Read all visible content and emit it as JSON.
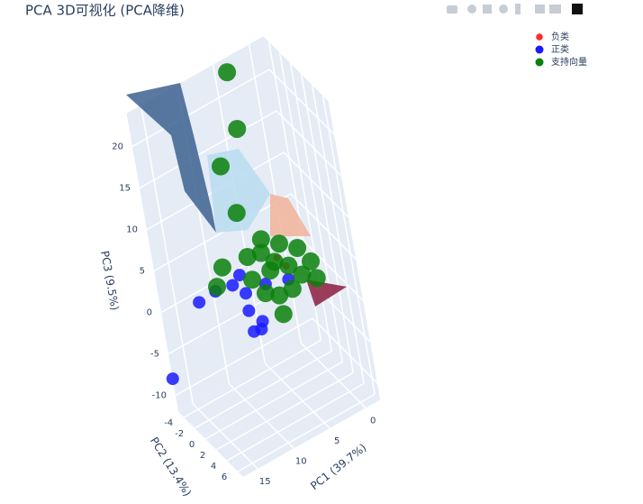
{
  "chart_data": {
    "type": "scatter3d",
    "title": "PCA 3D可视化 (PCA降维)",
    "x_label": "PC1 (39.7%)",
    "y_label": "PC2 (13.4%)",
    "z_label": "PC3 (9.5%)",
    "xlim": [
      -2,
      17
    ],
    "ylim": [
      -5,
      7
    ],
    "zlim": [
      -12,
      24
    ],
    "xticks": [
      0,
      5,
      10,
      15
    ],
    "yticks": [
      -4,
      -2,
      0,
      2,
      4,
      6
    ],
    "zticks": [
      -10,
      -5,
      0,
      5,
      10,
      15,
      20
    ],
    "grid": true,
    "legend": "top-right",
    "series": [
      {
        "name": "负类",
        "color": "#ff2a2a",
        "marker_size": 4,
        "x": [
          4.0,
          3.0
        ],
        "y": [
          0,
          0
        ],
        "z": [
          3.5,
          2.0
        ]
      },
      {
        "name": "正类",
        "color": "#1a1aff",
        "marker_size": 7,
        "x": [
          17,
          14.8,
          12.5,
          10.2,
          8.7,
          8.7,
          7.2,
          7.5,
          8.5,
          6.0,
          9.1,
          3.0
        ],
        "y": [
          -5,
          0,
          0,
          0,
          0,
          0,
          0,
          0,
          0,
          0,
          0,
          0
        ],
        "z": [
          -8,
          3.4,
          3.6,
          3.2,
          1.5,
          -0.6,
          -2.6,
          -3.4,
          -3.2,
          1.3,
          3.9,
          0.4
        ]
      },
      {
        "name": "支持向量",
        "color": "#0a800a",
        "marker_size": 10,
        "x": [
          3.4,
          6.2,
          9.1,
          8.1,
          11.1,
          12.2,
          4.4,
          4.5,
          5.9,
          3.4,
          1.2,
          -0.2,
          5.1,
          7.6,
          2.7,
          1.2,
          5.6,
          4.4,
          7.7,
          -0.6,
          2.7,
          6.2
        ],
        "y": [
          -5,
          0,
          0,
          0,
          0,
          0,
          0,
          0,
          0,
          0,
          0,
          0,
          0,
          0,
          0,
          0,
          0,
          0,
          0,
          0,
          0,
          0
        ],
        "z": [
          22.3,
          20.1,
          17.0,
          10.9,
          5.8,
          4.0,
          -3.1,
          -0.8,
          5.0,
          4.9,
          3.3,
          1.0,
          2.5,
          2.6,
          1.9,
          0.1,
          6.5,
          3.2,
          5.4,
          -1.2,
          -0.9,
          0.3
        ]
      }
    ]
  }
}
